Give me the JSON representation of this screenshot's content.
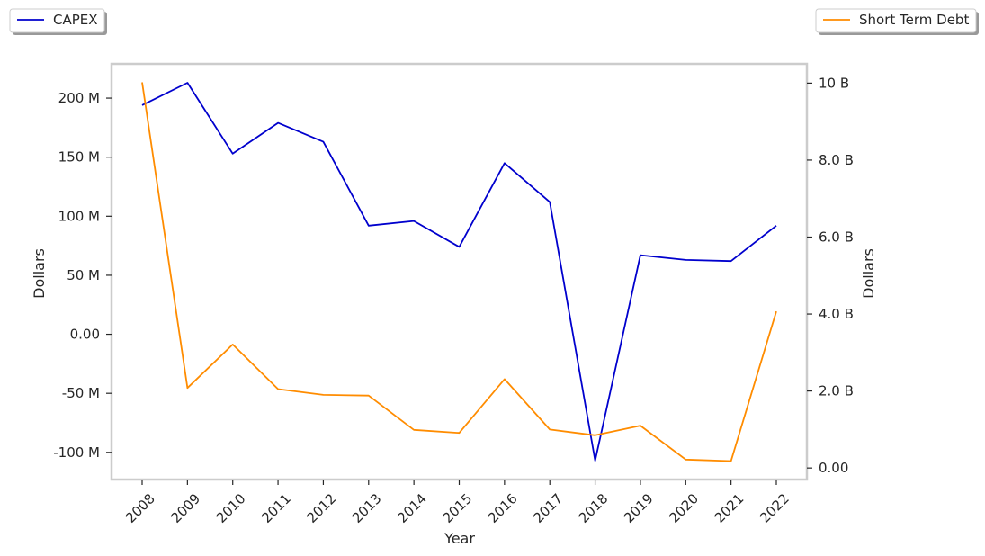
{
  "chart_data": {
    "type": "line",
    "x": [
      "2008",
      "2009",
      "2010",
      "2011",
      "2012",
      "2013",
      "2014",
      "2015",
      "2016",
      "2017",
      "2018",
      "2019",
      "2020",
      "2021",
      "2022"
    ],
    "xlabel": "Year",
    "ylabel_left": "Dollars",
    "ylabel_right": "Dollars",
    "ylim_left": [
      -123000000,
      229000000
    ],
    "ylim_right": [
      -300000000,
      10500000000
    ],
    "yticks_left": [
      {
        "value": 200000000,
        "label": "200 M"
      },
      {
        "value": 150000000,
        "label": "150 M"
      },
      {
        "value": 100000000,
        "label": "100 M"
      },
      {
        "value": 50000000,
        "label": "50 M"
      },
      {
        "value": 0,
        "label": "0.00"
      },
      {
        "value": -50000000,
        "label": "-50 M"
      },
      {
        "value": -100000000,
        "label": "-100 M"
      }
    ],
    "yticks_right": [
      {
        "value": 10000000000,
        "label": "10 B"
      },
      {
        "value": 8000000000,
        "label": "8.0 B"
      },
      {
        "value": 6000000000,
        "label": "6.0 B"
      },
      {
        "value": 4000000000,
        "label": "4.0 B"
      },
      {
        "value": 2000000000,
        "label": "2.0 B"
      },
      {
        "value": 0,
        "label": "0.00"
      }
    ],
    "grid": false,
    "series": [
      {
        "name": "CAPEX",
        "axis": "left",
        "color": "#0000cd",
        "legend_position": "top-left",
        "values": [
          194000000,
          213000000,
          153000000,
          179000000,
          163000000,
          92000000,
          96000000,
          74000000,
          145000000,
          112000000,
          -107000000,
          67000000,
          63000000,
          62000000,
          92000000
        ]
      },
      {
        "name": "Short Term Debt",
        "axis": "right",
        "color": "#ff8c00",
        "legend_position": "top-right",
        "values": [
          10020000000,
          2080000000,
          3210000000,
          2050000000,
          1900000000,
          1880000000,
          990000000,
          910000000,
          2310000000,
          1000000000,
          850000000,
          1100000000,
          220000000,
          180000000,
          4070000000
        ]
      }
    ]
  }
}
